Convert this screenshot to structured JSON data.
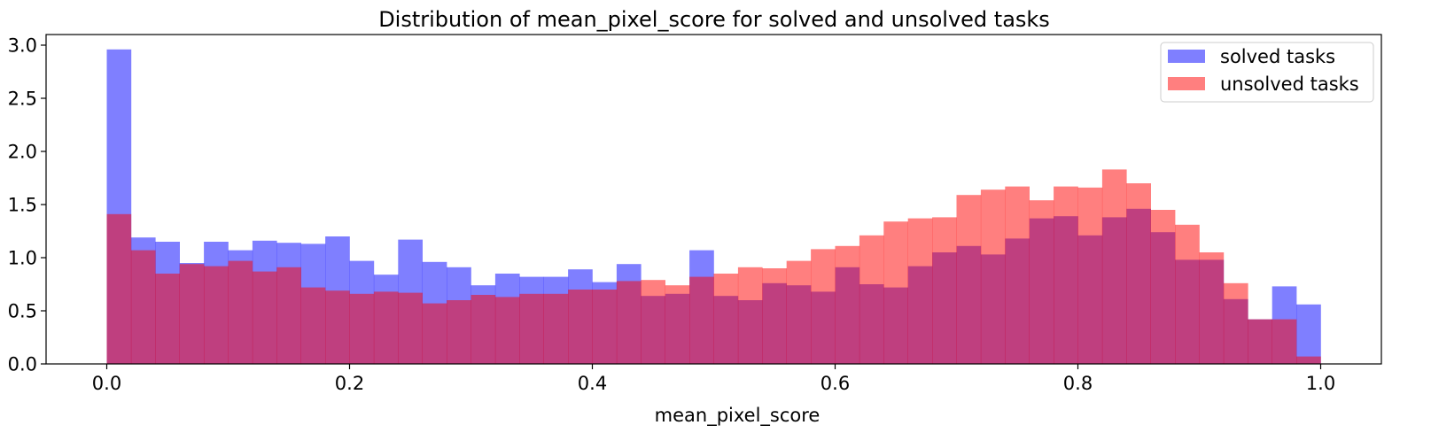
{
  "chart_data": {
    "type": "histogram",
    "title": "Distribution of mean_pixel_score for solved and unsolved tasks",
    "xlabel": "mean_pixel_score",
    "ylabel": "",
    "xlim": [
      -0.05,
      1.05
    ],
    "ylim": [
      0,
      3.1
    ],
    "x_ticks": [
      0.0,
      0.2,
      0.4,
      0.6,
      0.8,
      1.0
    ],
    "x_tick_labels": [
      "0.0",
      "0.2",
      "0.4",
      "0.6",
      "0.8",
      "1.0"
    ],
    "y_ticks": [
      0.0,
      0.5,
      1.0,
      1.5,
      2.0,
      2.5,
      3.0
    ],
    "y_tick_labels": [
      "0.0",
      "0.5",
      "1.0",
      "1.5",
      "2.0",
      "2.5",
      "3.0"
    ],
    "bins": 50,
    "bin_range": [
      0.0,
      1.0
    ],
    "legend_position": "top-right",
    "grid": false,
    "series": [
      {
        "name": "solved tasks",
        "color": "#0000ff",
        "alpha": 0.5,
        "values": [
          2.96,
          1.19,
          1.15,
          0.95,
          1.15,
          1.07,
          1.16,
          1.14,
          1.13,
          1.2,
          0.97,
          0.84,
          1.17,
          0.96,
          0.91,
          0.74,
          0.85,
          0.82,
          0.82,
          0.89,
          0.77,
          0.94,
          0.64,
          0.66,
          1.07,
          0.64,
          0.6,
          0.76,
          0.74,
          0.68,
          0.91,
          0.75,
          0.72,
          0.92,
          1.05,
          1.11,
          1.03,
          1.18,
          1.37,
          1.39,
          1.21,
          1.38,
          1.46,
          1.24,
          0.98,
          0.98,
          0.61,
          0.42,
          0.73,
          0.56
        ]
      },
      {
        "name": "unsolved tasks",
        "color": "#ff0000",
        "alpha": 0.5,
        "values": [
          1.41,
          1.07,
          0.85,
          0.94,
          0.92,
          0.97,
          0.87,
          0.91,
          0.72,
          0.69,
          0.66,
          0.68,
          0.67,
          0.57,
          0.6,
          0.65,
          0.63,
          0.66,
          0.66,
          0.7,
          0.7,
          0.78,
          0.79,
          0.74,
          0.82,
          0.85,
          0.91,
          0.9,
          0.97,
          1.08,
          1.11,
          1.21,
          1.34,
          1.37,
          1.38,
          1.59,
          1.64,
          1.67,
          1.54,
          1.67,
          1.66,
          1.83,
          1.7,
          1.45,
          1.31,
          1.05,
          0.76,
          0.42,
          0.42,
          0.07
        ]
      }
    ]
  }
}
